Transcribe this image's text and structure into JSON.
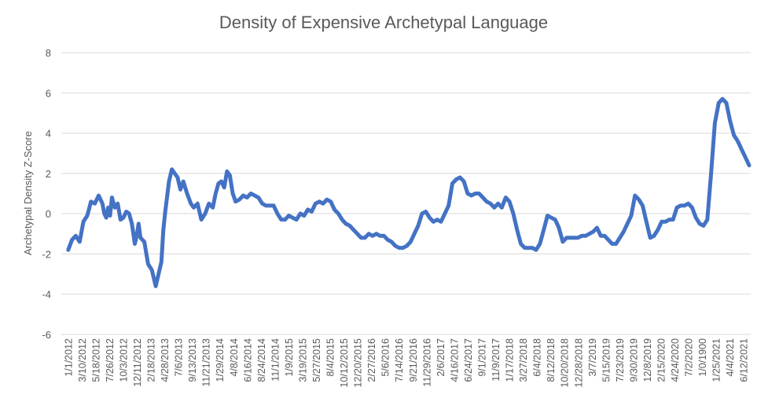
{
  "chart_data": {
    "type": "line",
    "title": "Density of Expensive Archetypal Language",
    "xlabel": "",
    "ylabel": "Archetypal Density Z-Score",
    "ylim": [
      -6,
      8
    ],
    "yticks": [
      -6,
      -4,
      -2,
      0,
      2,
      4,
      6,
      8
    ],
    "grid": true,
    "legend": "none",
    "colors": {
      "series": "#4472c4",
      "grid": "#d9d9d9",
      "text": "#595959"
    },
    "x_tick_labels": [
      "1/1/2012",
      "3/10/2012",
      "5/18/2012",
      "7/26/2012",
      "10/3/2012",
      "12/11/2012",
      "2/18/2013",
      "4/28/2013",
      "7/6/2013",
      "9/13/2013",
      "11/21/2013",
      "1/29/2014",
      "4/8/2014",
      "6/16/2014",
      "8/24/2014",
      "11/1/2014",
      "1/9/2015",
      "3/19/2015",
      "5/27/2015",
      "8/4/2015",
      "10/12/2015",
      "12/20/2015",
      "2/27/2016",
      "5/6/2016",
      "7/14/2016",
      "9/21/2016",
      "11/29/2016",
      "2/6/2017",
      "4/16/2017",
      "6/24/2017",
      "9/1/2017",
      "11/9/2017",
      "1/17/2018",
      "3/27/2018",
      "6/4/2018",
      "8/12/2018",
      "10/20/2018",
      "12/28/2018",
      "3/7/2019",
      "5/15/2019",
      "7/23/2019",
      "9/30/2019",
      "12/8/2019",
      "2/15/2020",
      "4/24/2020",
      "7/2/2020",
      "1/0/1900",
      "1/25/2021",
      "4/4/2021",
      "6/12/2021"
    ],
    "series": [
      {
        "values": [
          [
            0,
            -1.8
          ],
          [
            0.2,
            -1.3
          ],
          [
            0.4,
            -1.1
          ],
          [
            0.6,
            -1.4
          ],
          [
            0.8,
            -0.4
          ],
          [
            1.0,
            -0.1
          ],
          [
            1.2,
            0.6
          ],
          [
            1.4,
            0.5
          ],
          [
            1.6,
            0.9
          ],
          [
            1.8,
            0.5
          ],
          [
            1.9,
            0.0
          ],
          [
            2.0,
            -0.2
          ],
          [
            2.1,
            0.3
          ],
          [
            2.2,
            -0.1
          ],
          [
            2.3,
            0.8
          ],
          [
            2.45,
            0.3
          ],
          [
            2.6,
            0.5
          ],
          [
            2.75,
            -0.3
          ],
          [
            2.9,
            -0.2
          ],
          [
            3.05,
            0.1
          ],
          [
            3.2,
            0.0
          ],
          [
            3.35,
            -0.5
          ],
          [
            3.5,
            -1.5
          ],
          [
            3.6,
            -1.1
          ],
          [
            3.7,
            -0.5
          ],
          [
            3.8,
            -1.2
          ],
          [
            4.0,
            -1.4
          ],
          [
            4.2,
            -2.5
          ],
          [
            4.4,
            -2.8
          ],
          [
            4.6,
            -3.6
          ],
          [
            4.75,
            -3.0
          ],
          [
            4.9,
            -2.4
          ],
          [
            5.0,
            -0.8
          ],
          [
            5.1,
            0.1
          ],
          [
            5.3,
            1.6
          ],
          [
            5.45,
            2.2
          ],
          [
            5.6,
            2.0
          ],
          [
            5.75,
            1.8
          ],
          [
            5.9,
            1.2
          ],
          [
            6.05,
            1.6
          ],
          [
            6.25,
            1.0
          ],
          [
            6.45,
            0.5
          ],
          [
            6.6,
            0.3
          ],
          [
            6.8,
            0.5
          ],
          [
            7.0,
            -0.3
          ],
          [
            7.2,
            0.0
          ],
          [
            7.4,
            0.5
          ],
          [
            7.6,
            0.3
          ],
          [
            7.75,
            1.0
          ],
          [
            7.9,
            1.5
          ],
          [
            8.05,
            1.6
          ],
          [
            8.2,
            1.3
          ],
          [
            8.35,
            2.1
          ],
          [
            8.5,
            1.9
          ],
          [
            8.65,
            1.0
          ],
          [
            8.8,
            0.6
          ],
          [
            9.0,
            0.7
          ],
          [
            9.2,
            0.9
          ],
          [
            9.4,
            0.8
          ],
          [
            9.6,
            1.0
          ],
          [
            9.8,
            0.9
          ],
          [
            10.0,
            0.8
          ],
          [
            10.2,
            0.5
          ],
          [
            10.4,
            0.4
          ],
          [
            10.6,
            0.4
          ],
          [
            10.8,
            0.4
          ],
          [
            11.0,
            0.0
          ],
          [
            11.2,
            -0.3
          ],
          [
            11.4,
            -0.3
          ],
          [
            11.6,
            -0.1
          ],
          [
            11.8,
            -0.2
          ],
          [
            12.0,
            -0.3
          ],
          [
            12.2,
            0.0
          ],
          [
            12.4,
            -0.1
          ],
          [
            12.6,
            0.2
          ],
          [
            12.8,
            0.1
          ],
          [
            13.0,
            0.5
          ],
          [
            13.2,
            0.6
          ],
          [
            13.4,
            0.5
          ],
          [
            13.6,
            0.7
          ],
          [
            13.8,
            0.6
          ],
          [
            14.0,
            0.2
          ],
          [
            14.2,
            0.0
          ],
          [
            14.4,
            -0.3
          ],
          [
            14.6,
            -0.5
          ],
          [
            14.8,
            -0.6
          ],
          [
            15.0,
            -0.8
          ],
          [
            15.2,
            -1.0
          ],
          [
            15.4,
            -1.2
          ],
          [
            15.6,
            -1.2
          ],
          [
            15.8,
            -1.0
          ],
          [
            16.0,
            -1.1
          ],
          [
            16.2,
            -1.0
          ],
          [
            16.4,
            -1.1
          ],
          [
            16.6,
            -1.1
          ],
          [
            16.8,
            -1.3
          ],
          [
            17.0,
            -1.4
          ],
          [
            17.2,
            -1.6
          ],
          [
            17.4,
            -1.7
          ],
          [
            17.6,
            -1.7
          ],
          [
            17.8,
            -1.6
          ],
          [
            18.0,
            -1.4
          ],
          [
            18.2,
            -1.0
          ],
          [
            18.4,
            -0.6
          ],
          [
            18.6,
            0.0
          ],
          [
            18.8,
            0.1
          ],
          [
            19.0,
            -0.2
          ],
          [
            19.2,
            -0.4
          ],
          [
            19.4,
            -0.3
          ],
          [
            19.6,
            -0.4
          ],
          [
            19.8,
            0.0
          ],
          [
            20.0,
            0.4
          ],
          [
            20.2,
            1.5
          ],
          [
            20.4,
            1.7
          ],
          [
            20.6,
            1.8
          ],
          [
            20.8,
            1.6
          ],
          [
            21.0,
            1.0
          ],
          [
            21.2,
            0.9
          ],
          [
            21.4,
            1.0
          ],
          [
            21.6,
            1.0
          ],
          [
            21.8,
            0.8
          ],
          [
            22.0,
            0.6
          ],
          [
            22.2,
            0.5
          ],
          [
            22.4,
            0.3
          ],
          [
            22.6,
            0.5
          ],
          [
            22.8,
            0.3
          ],
          [
            23.0,
            0.8
          ],
          [
            23.2,
            0.6
          ],
          [
            23.4,
            0.0
          ],
          [
            23.6,
            -0.8
          ],
          [
            23.8,
            -1.5
          ],
          [
            24.0,
            -1.7
          ],
          [
            24.2,
            -1.7
          ],
          [
            24.4,
            -1.7
          ],
          [
            24.6,
            -1.8
          ],
          [
            24.8,
            -1.5
          ],
          [
            25.0,
            -0.8
          ],
          [
            25.2,
            -0.1
          ],
          [
            25.4,
            -0.2
          ],
          [
            25.6,
            -0.3
          ],
          [
            25.8,
            -0.7
          ],
          [
            26.0,
            -1.4
          ],
          [
            26.2,
            -1.2
          ],
          [
            26.4,
            -1.2
          ],
          [
            26.6,
            -1.2
          ],
          [
            26.8,
            -1.2
          ],
          [
            27.0,
            -1.1
          ],
          [
            27.2,
            -1.1
          ],
          [
            27.4,
            -1.0
          ],
          [
            27.6,
            -0.9
          ],
          [
            27.8,
            -0.7
          ],
          [
            28.0,
            -1.1
          ],
          [
            28.2,
            -1.1
          ],
          [
            28.4,
            -1.3
          ],
          [
            28.6,
            -1.5
          ],
          [
            28.8,
            -1.5
          ],
          [
            29.0,
            -1.2
          ],
          [
            29.2,
            -0.9
          ],
          [
            29.4,
            -0.5
          ],
          [
            29.6,
            -0.1
          ],
          [
            29.8,
            0.9
          ],
          [
            30.0,
            0.7
          ],
          [
            30.2,
            0.4
          ],
          [
            30.4,
            -0.4
          ],
          [
            30.6,
            -1.2
          ],
          [
            30.8,
            -1.1
          ],
          [
            31.0,
            -0.8
          ],
          [
            31.2,
            -0.4
          ],
          [
            31.4,
            -0.4
          ],
          [
            31.6,
            -0.3
          ],
          [
            31.8,
            -0.3
          ],
          [
            32.0,
            0.3
          ],
          [
            32.2,
            0.4
          ],
          [
            32.4,
            0.4
          ],
          [
            32.6,
            0.5
          ],
          [
            32.8,
            0.3
          ],
          [
            33.0,
            -0.2
          ],
          [
            33.2,
            -0.5
          ],
          [
            33.4,
            -0.6
          ],
          [
            33.6,
            -0.3
          ],
          [
            33.8,
            2.0
          ],
          [
            34.0,
            4.5
          ],
          [
            34.2,
            5.5
          ],
          [
            34.4,
            5.7
          ],
          [
            34.6,
            5.5
          ],
          [
            34.8,
            4.6
          ],
          [
            35.0,
            3.9
          ],
          [
            35.2,
            3.6
          ],
          [
            35.4,
            3.2
          ],
          [
            35.6,
            2.8
          ],
          [
            35.8,
            2.4
          ]
        ]
      }
    ]
  }
}
